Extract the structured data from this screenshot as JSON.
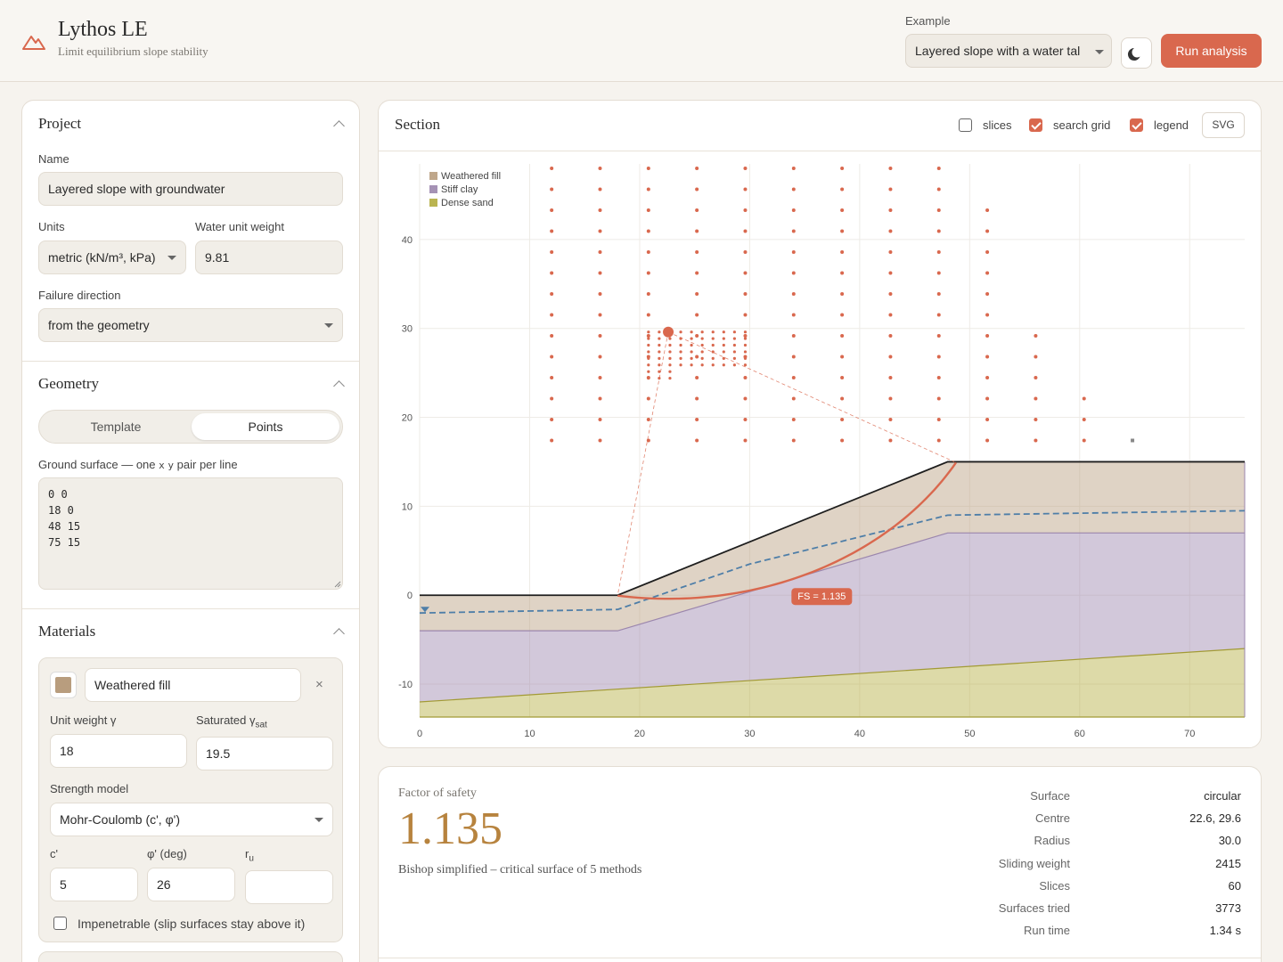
{
  "header": {
    "title": "Lythos LE",
    "subtitle": "Limit equilibrium slope stability",
    "example_label": "Example",
    "example_value": "Layered slope with a water tal",
    "run_label": "Run analysis"
  },
  "project": {
    "heading": "Project",
    "name_label": "Name",
    "name_value": "Layered slope with groundwater",
    "units_label": "Units",
    "units_value": "metric (kN/m³, kPa)",
    "water_label": "Water unit weight",
    "water_value": "9.81",
    "failure_label": "Failure direction",
    "failure_value": "from the geometry"
  },
  "geometry": {
    "heading": "Geometry",
    "tabs": [
      "Template",
      "Points"
    ],
    "active_tab": "Points",
    "ground_label_pre": "Ground surface — one",
    "ground_label_x": "x",
    "ground_label_y": "y",
    "ground_label_post": "pair per line",
    "points_text": "0 0\n18 0\n48 15\n75 15"
  },
  "materials": {
    "heading": "Materials",
    "item": {
      "name": "Weathered fill",
      "color": "#b89d7e",
      "unit_weight_label": "Unit weight γ",
      "unit_weight_value": "18",
      "sat_label": "Saturated γ",
      "sat_sub": "sat",
      "sat_value": "19.5",
      "strength_label": "Strength model",
      "strength_value": "Mohr-Coulomb (c', φ')",
      "c_label": "c'",
      "c_value": "5",
      "phi_label": "φ' (deg)",
      "phi_value": "26",
      "ru_label": "r",
      "ru_sub": "u",
      "ru_value": "",
      "impenetrable_label": "Impenetrable (slip surfaces stay above it)"
    }
  },
  "section": {
    "title": "Section",
    "toggles": [
      {
        "label": "slices",
        "checked": false
      },
      {
        "label": "search grid",
        "checked": true
      },
      {
        "label": "legend",
        "checked": true
      }
    ],
    "svg_label": "SVG"
  },
  "chart_data": {
    "type": "slope-section",
    "x_ticks": [
      0,
      10,
      20,
      30,
      40,
      50,
      60,
      70
    ],
    "y_ticks": [
      -10,
      0,
      10,
      20,
      30,
      40
    ],
    "xlim": [
      0,
      75
    ],
    "ylim": [
      -13.7,
      48.5
    ],
    "legend": [
      {
        "name": "Weathered fill",
        "color": "#b89d7e"
      },
      {
        "name": "Stiff clay",
        "color": "#9b86ad"
      },
      {
        "name": "Dense sand",
        "color": "#b3ac3e"
      }
    ],
    "ground": [
      [
        0,
        0
      ],
      [
        18,
        0
      ],
      [
        48,
        15
      ],
      [
        75,
        15
      ]
    ],
    "clay_top": [
      [
        0,
        -4
      ],
      [
        18,
        -4
      ],
      [
        48,
        7
      ],
      [
        75,
        7
      ]
    ],
    "sand_top": [
      [
        0,
        -12
      ],
      [
        75,
        -6
      ]
    ],
    "base_y": -13.7,
    "water_table": [
      [
        0,
        -2
      ],
      [
        18,
        -1.6
      ],
      [
        30,
        3.5
      ],
      [
        48,
        9
      ],
      [
        75,
        9.5
      ]
    ],
    "grid_columns": [
      {
        "x": 12,
        "y0": 17.4,
        "y1": 48
      },
      {
        "x": 16.4,
        "y0": 17.4,
        "y1": 48
      },
      {
        "x": 20.8,
        "y0": 17.4,
        "y1": 48
      },
      {
        "x": 25.2,
        "y0": 17.4,
        "y1": 48
      },
      {
        "x": 29.6,
        "y0": 17.4,
        "y1": 48
      },
      {
        "x": 34.0,
        "y0": 17.4,
        "y1": 48
      },
      {
        "x": 38.4,
        "y0": 17.4,
        "y1": 48
      },
      {
        "x": 42.8,
        "y0": 17.4,
        "y1": 48
      },
      {
        "x": 47.2,
        "y0": 17.4,
        "y1": 48
      },
      {
        "x": 51.6,
        "y0": 17.4,
        "y1": 43.3
      },
      {
        "x": 56.0,
        "y0": 17.4,
        "y1": 31.5
      },
      {
        "x": 60.4,
        "y0": 17.4,
        "y1": 22.1
      }
    ],
    "grid_extra_point": [
      64.8,
      17.4
    ],
    "fine_grid": {
      "x0": 20.8,
      "x1": 29.6,
      "y0": 24.4,
      "y1": 29.6,
      "nx": 10,
      "ny": 8
    },
    "centre": [
      22.6,
      29.6
    ],
    "radius": 30.0,
    "entry_point": [
      18,
      0
    ],
    "exit_point": [
      48.6,
      15
    ],
    "fs_label": "FS = 1.135",
    "fs_label_pos": [
      33.8,
      -0.1
    ]
  },
  "results": {
    "fs_label": "Factor of safety",
    "fs_value": "1.135",
    "method_desc": "Bishop simplified – critical surface of 5 methods",
    "stats": [
      {
        "k": "Surface",
        "v": "circular"
      },
      {
        "k": "Centre",
        "v": "22.6, 29.6"
      },
      {
        "k": "Radius",
        "v": "30.0"
      },
      {
        "k": "Sliding weight",
        "v": "2415"
      },
      {
        "k": "Slices",
        "v": "60"
      },
      {
        "k": "Surfaces tried",
        "v": "3773"
      },
      {
        "k": "Run time",
        "v": "1.34 s"
      }
    ]
  }
}
